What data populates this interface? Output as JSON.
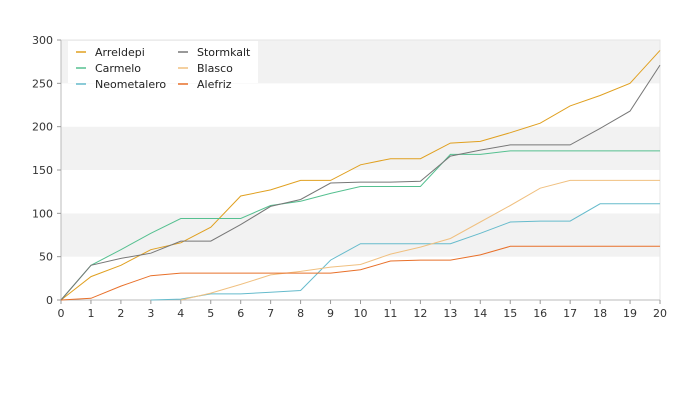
{
  "chart_data": {
    "type": "line",
    "title": "",
    "xlabel": "",
    "ylabel": "",
    "x": [
      0,
      1,
      2,
      3,
      4,
      5,
      6,
      7,
      8,
      9,
      10,
      11,
      12,
      13,
      14,
      15,
      16,
      17,
      18,
      19,
      20
    ],
    "xlim": [
      0,
      20
    ],
    "ylim": [
      0,
      300
    ],
    "x_ticks": [
      0,
      1,
      2,
      3,
      4,
      5,
      6,
      7,
      8,
      9,
      10,
      11,
      12,
      13,
      14,
      15,
      16,
      17,
      18,
      19,
      20
    ],
    "y_ticks": [
      0,
      50,
      100,
      150,
      200,
      250,
      300
    ],
    "grid": "alternating horizontal bands",
    "legend_position": "top-left",
    "series": [
      {
        "name": "Arreldepi",
        "color": "#e0a020",
        "values": [
          0,
          27,
          40,
          58,
          66,
          84,
          120,
          127,
          138,
          138,
          156,
          163,
          163,
          181,
          183,
          193,
          204,
          224,
          236,
          250,
          288
        ]
      },
      {
        "name": "Carmelo",
        "color": "#55c090",
        "values": [
          0,
          40,
          58,
          77,
          94,
          94,
          94,
          109,
          114,
          123,
          131,
          131,
          131,
          168,
          168,
          172,
          172,
          172,
          172,
          172,
          172
        ]
      },
      {
        "name": "Neometalero",
        "color": "#66bbcc",
        "values": [
          null,
          null,
          null,
          0,
          1,
          7,
          7,
          9,
          11,
          46,
          65,
          65,
          65,
          65,
          77,
          90,
          91,
          91,
          111,
          111,
          111
        ]
      },
      {
        "name": "Stormkalt",
        "color": "#777777",
        "values": [
          0,
          40,
          48,
          54,
          68,
          68,
          87,
          108,
          116,
          135,
          136,
          136,
          137,
          166,
          173,
          179,
          179,
          179,
          198,
          218,
          271
        ]
      },
      {
        "name": "Blasco",
        "color": "#f0c080",
        "values": [
          null,
          null,
          null,
          null,
          0,
          8,
          18,
          29,
          33,
          38,
          41,
          53,
          61,
          71,
          90,
          109,
          129,
          138,
          138,
          138,
          138
        ]
      },
      {
        "name": "Alefriz",
        "color": "#e8702a",
        "values": [
          0,
          2,
          16,
          28,
          31,
          31,
          31,
          31,
          31,
          31,
          35,
          45,
          46,
          46,
          52,
          62,
          62,
          62,
          62,
          62,
          62
        ]
      }
    ]
  }
}
